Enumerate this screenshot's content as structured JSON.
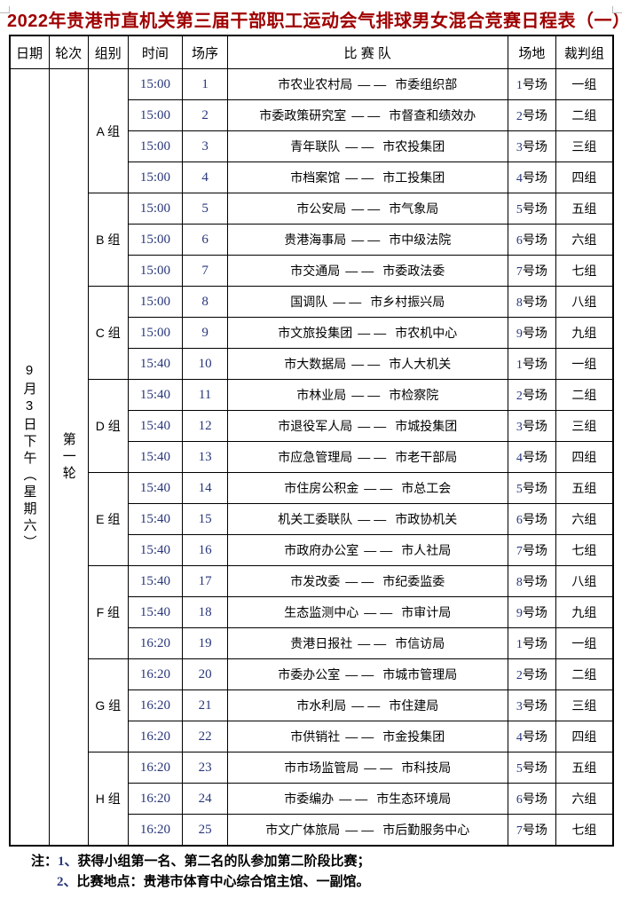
{
  "page": {
    "title": "2022年贵港市直机关第三届干部职工运动会气排球男女混合竞赛日程表（一）"
  },
  "table": {
    "headers": {
      "date": "日期",
      "round": "轮次",
      "group": "组别",
      "time": "时间",
      "seq": "场序",
      "teams": "比 赛 队",
      "court": "场地",
      "referee": "裁判组"
    },
    "date_label": "9月3日下午（星期六）",
    "round_label": "第一轮",
    "vs_separator": "——",
    "groups": [
      {
        "label": "A 组",
        "matches": [
          {
            "time": "15:00",
            "seq": "1",
            "home": "市农业农村局",
            "away": "市委组织部",
            "court": "1号场",
            "referee": "一组"
          },
          {
            "time": "15:00",
            "seq": "2",
            "home": "市委政策研究室",
            "away": "市督查和绩效办",
            "court": "2号场",
            "referee": "二组"
          },
          {
            "time": "15:00",
            "seq": "3",
            "home": "青年联队",
            "away": "市农投集团",
            "court": "3号场",
            "referee": "三组"
          },
          {
            "time": "15:00",
            "seq": "4",
            "home": "市档案馆",
            "away": "市工投集团",
            "court": "4号场",
            "referee": "四组"
          }
        ]
      },
      {
        "label": "B 组",
        "matches": [
          {
            "time": "15:00",
            "seq": "5",
            "home": "市公安局",
            "away": "市气象局",
            "court": "5号场",
            "referee": "五组"
          },
          {
            "time": "15:00",
            "seq": "6",
            "home": "贵港海事局",
            "away": "市中级法院",
            "court": "6号场",
            "referee": "六组"
          },
          {
            "time": "15:00",
            "seq": "7",
            "home": "市交通局",
            "away": "市委政法委",
            "court": "7号场",
            "referee": "七组"
          }
        ]
      },
      {
        "label": "C 组",
        "matches": [
          {
            "time": "15:00",
            "seq": "8",
            "home": "国调队",
            "away": "市乡村振兴局",
            "court": "8号场",
            "referee": "八组"
          },
          {
            "time": "15:00",
            "seq": "9",
            "home": "市文旅投集团",
            "away": "市农机中心",
            "court": "9号场",
            "referee": "九组"
          },
          {
            "time": "15:40",
            "seq": "10",
            "home": "市大数据局",
            "away": "市人大机关",
            "court": "1号场",
            "referee": "一组"
          }
        ]
      },
      {
        "label": "D 组",
        "matches": [
          {
            "time": "15:40",
            "seq": "11",
            "home": "市林业局",
            "away": "市检察院",
            "court": "2号场",
            "referee": "二组"
          },
          {
            "time": "15:40",
            "seq": "12",
            "home": "市退役军人局",
            "away": "市城投集团",
            "court": "3号场",
            "referee": "三组"
          },
          {
            "time": "15:40",
            "seq": "13",
            "home": "市应急管理局",
            "away": "市老干部局",
            "court": "4号场",
            "referee": "四组"
          }
        ]
      },
      {
        "label": "E 组",
        "matches": [
          {
            "time": "15:40",
            "seq": "14",
            "home": "市住房公积金",
            "away": "市总工会",
            "court": "5号场",
            "referee": "五组"
          },
          {
            "time": "15:40",
            "seq": "15",
            "home": "机关工委联队",
            "away": "市政协机关",
            "court": "6号场",
            "referee": "六组"
          },
          {
            "time": "15:40",
            "seq": "16",
            "home": "市政府办公室",
            "away": "市人社局",
            "court": "7号场",
            "referee": "七组"
          }
        ]
      },
      {
        "label": "F 组",
        "matches": [
          {
            "time": "15:40",
            "seq": "17",
            "home": "市发改委",
            "away": "市纪委监委",
            "court": "8号场",
            "referee": "八组"
          },
          {
            "time": "15:40",
            "seq": "18",
            "home": "生态监测中心",
            "away": "市审计局",
            "court": "9号场",
            "referee": "九组"
          },
          {
            "time": "16:20",
            "seq": "19",
            "home": "贵港日报社",
            "away": "市信访局",
            "court": "1号场",
            "referee": "一组"
          }
        ]
      },
      {
        "label": "G 组",
        "matches": [
          {
            "time": "16:20",
            "seq": "20",
            "home": "市委办公室",
            "away": "市城市管理局",
            "court": "2号场",
            "referee": "二组"
          },
          {
            "time": "16:20",
            "seq": "21",
            "home": "市水利局",
            "away": "市住建局",
            "court": "3号场",
            "referee": "三组"
          },
          {
            "time": "16:20",
            "seq": "22",
            "home": "市供销社",
            "away": "市金投集团",
            "court": "4号场",
            "referee": "四组"
          }
        ]
      },
      {
        "label": "H 组",
        "matches": [
          {
            "time": "16:20",
            "seq": "23",
            "home": "市市场监管局",
            "away": "市科技局",
            "court": "5号场",
            "referee": "五组"
          },
          {
            "time": "16:20",
            "seq": "24",
            "home": "市委编办",
            "away": "市生态环境局",
            "court": "6号场",
            "referee": "六组"
          },
          {
            "time": "16:20",
            "seq": "25",
            "home": "市文广体旅局",
            "away": "市后勤服务中心",
            "court": "7号场",
            "referee": "七组"
          }
        ]
      }
    ]
  },
  "notes": {
    "prefix": "注：",
    "items": [
      {
        "num": "1、",
        "text": "获得小组第一名、第二名的队参加第二阶段比赛；"
      },
      {
        "num": "2、",
        "text": "比赛地点：贵港市体育中心综合馆主馆、一副馆。"
      }
    ]
  }
}
